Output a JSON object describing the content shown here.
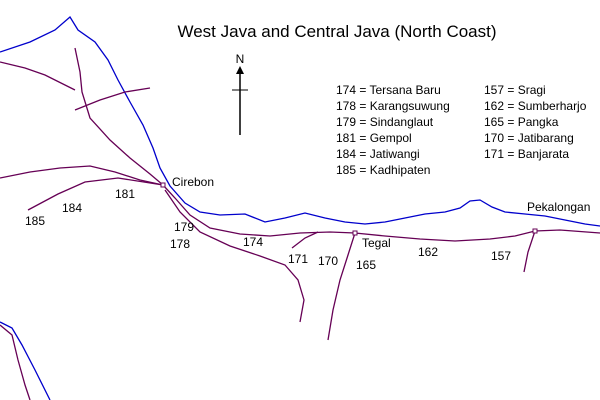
{
  "title": "West Java and Central Java (North Coast)",
  "north": "N",
  "legend_left": [
    "174 = Tersana Baru",
    "178 = Karangsuwung",
    "179 = Sindanglaut",
    "181 = Gempol",
    "184 = Jatiwangi",
    "185 = Kadhipaten"
  ],
  "legend_right": [
    "157 = Sragi",
    "162 = Sumberharjo",
    "165 = Pangka",
    "170 = Jatibarang",
    "171 = Banjarata"
  ],
  "places": [
    "Cirebon",
    "Tegal",
    "Pekalongan"
  ],
  "stations": [
    "185",
    "184",
    "181",
    "179",
    "178",
    "174",
    "171",
    "170",
    "165",
    "162",
    "157"
  ]
}
